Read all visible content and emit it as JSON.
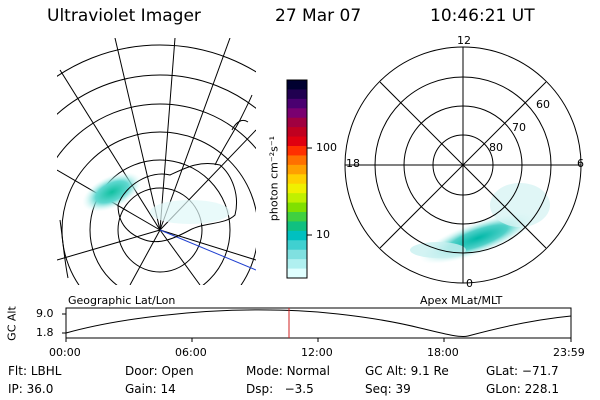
{
  "header": {
    "instrument": "Ultraviolet Imager",
    "date": "27 Mar 07",
    "time": "10:46:21 UT"
  },
  "left_panel": {
    "label": "Geographic Lat/Lon"
  },
  "right_panel": {
    "label": "Apex MLat/MLT",
    "mlt_labels": [
      "12",
      "18",
      "6",
      "0"
    ],
    "mlat_labels": [
      "60",
      "70",
      "80"
    ]
  },
  "colorbar": {
    "unit_label": "photon cm⁻²s⁻¹",
    "ticks": [
      "100",
      "10"
    ],
    "colors": [
      "#000030",
      "#200050",
      "#4a0070",
      "#7a0070",
      "#a00040",
      "#c00020",
      "#e00010",
      "#ff3000",
      "#ff7000",
      "#ffa000",
      "#ffd000",
      "#f0f000",
      "#c0f000",
      "#80e000",
      "#40d040",
      "#10c080",
      "#00c0c0",
      "#40d0d0",
      "#80e0e0",
      "#b0f0f0",
      "#e0ffff"
    ]
  },
  "altitude_strip": {
    "axis_label": "GC Alt",
    "y_ticks": [
      "9.0",
      "1.8"
    ],
    "x_ticks": [
      "00:00",
      "06:00",
      "12:00",
      "18:00",
      "23:59"
    ]
  },
  "info": {
    "row1": [
      {
        "label": "Flt:",
        "value": "LBHL"
      },
      {
        "label": "Door:",
        "value": "Open"
      },
      {
        "label": "Mode:",
        "value": "Normal"
      },
      {
        "label": "GC Alt:",
        "value": "9.1 Re"
      },
      {
        "label": "GLat:",
        "value": "−71.7"
      }
    ],
    "row2": [
      {
        "label": "IP:",
        "value": "36.0"
      },
      {
        "label": "Gain:",
        "value": "14"
      },
      {
        "label": "Dsp:",
        "value": "  −3.5"
      },
      {
        "label": "Seq:",
        "value": "39"
      },
      {
        "label": "GLon:",
        "value": "228.1"
      }
    ]
  }
}
